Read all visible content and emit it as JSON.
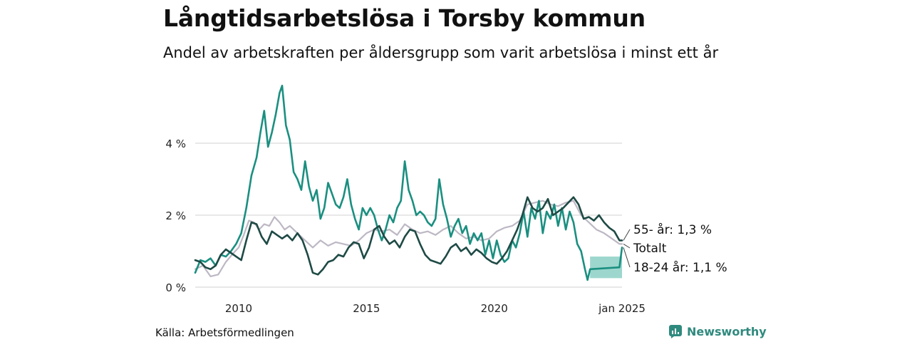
{
  "header": {
    "title": "Långtidsarbetslösa i Torsby kommun",
    "subtitle": "Andel av arbetskraften per åldersgrupp som varit arbetslösa i minst ett år"
  },
  "footer": {
    "source": "Källa: Arbetsförmedlingen",
    "brand": "Newsworthy"
  },
  "colors": {
    "young": "#1a8f80",
    "old": "#1e4a45",
    "total": "#bdb8c4",
    "band": "#7cc8bc",
    "grid": "#d9d9d9"
  },
  "chart_data": {
    "type": "line",
    "title": "Långtidsarbetslösa i Torsby kommun",
    "xlabel": "",
    "ylabel": "",
    "xlim": [
      2008.3,
      2025.0
    ],
    "ylim": [
      0,
      5.8
    ],
    "y_ticks": [
      0,
      2,
      4
    ],
    "y_tick_labels": [
      "0 %",
      "2 %",
      "4 %"
    ],
    "x_ticks": [
      2010,
      2015,
      2020,
      2025
    ],
    "x_tick_labels": [
      "2010",
      "2015",
      "2020",
      "jan 2025"
    ],
    "series": [
      {
        "name": "Totalt",
        "label": "Totalt",
        "color": "#bdb8c4",
        "points": [
          [
            2008.3,
            0.5
          ],
          [
            2008.6,
            0.6
          ],
          [
            2008.9,
            0.3
          ],
          [
            2009.2,
            0.35
          ],
          [
            2009.5,
            0.7
          ],
          [
            2009.8,
            0.95
          ],
          [
            2010.0,
            1.1
          ],
          [
            2010.2,
            1.45
          ],
          [
            2010.4,
            1.85
          ],
          [
            2010.6,
            1.8
          ],
          [
            2010.8,
            1.6
          ],
          [
            2011.0,
            1.75
          ],
          [
            2011.2,
            1.7
          ],
          [
            2011.4,
            1.95
          ],
          [
            2011.6,
            1.8
          ],
          [
            2011.8,
            1.6
          ],
          [
            2012.0,
            1.7
          ],
          [
            2012.3,
            1.5
          ],
          [
            2012.6,
            1.3
          ],
          [
            2012.9,
            1.1
          ],
          [
            2013.2,
            1.3
          ],
          [
            2013.5,
            1.15
          ],
          [
            2013.8,
            1.25
          ],
          [
            2014.1,
            1.2
          ],
          [
            2014.4,
            1.15
          ],
          [
            2014.7,
            1.3
          ],
          [
            2015.0,
            1.5
          ],
          [
            2015.3,
            1.6
          ],
          [
            2015.6,
            1.55
          ],
          [
            2015.9,
            1.6
          ],
          [
            2016.2,
            1.45
          ],
          [
            2016.5,
            1.75
          ],
          [
            2016.8,
            1.6
          ],
          [
            2017.1,
            1.5
          ],
          [
            2017.4,
            1.55
          ],
          [
            2017.7,
            1.45
          ],
          [
            2018.0,
            1.6
          ],
          [
            2018.3,
            1.7
          ],
          [
            2018.6,
            1.5
          ],
          [
            2018.9,
            1.35
          ],
          [
            2019.2,
            1.4
          ],
          [
            2019.5,
            1.3
          ],
          [
            2019.8,
            1.35
          ],
          [
            2020.1,
            1.55
          ],
          [
            2020.4,
            1.65
          ],
          [
            2020.7,
            1.7
          ],
          [
            2021.0,
            1.85
          ],
          [
            2021.3,
            2.3
          ],
          [
            2021.6,
            2.35
          ],
          [
            2021.9,
            2.4
          ],
          [
            2022.2,
            2.3
          ],
          [
            2022.5,
            2.25
          ],
          [
            2022.8,
            2.35
          ],
          [
            2023.1,
            2.4
          ],
          [
            2023.4,
            2.0
          ],
          [
            2023.7,
            1.8
          ],
          [
            2024.0,
            1.6
          ],
          [
            2024.3,
            1.5
          ],
          [
            2024.6,
            1.35
          ],
          [
            2024.9,
            1.2
          ],
          [
            2025.0,
            1.2
          ]
        ]
      },
      {
        "name": "18-24 år",
        "label": "18-24 år: 1,1 %",
        "color": "#1a8f80",
        "points": [
          [
            2008.3,
            0.4
          ],
          [
            2008.5,
            0.75
          ],
          [
            2008.7,
            0.7
          ],
          [
            2008.9,
            0.8
          ],
          [
            2009.1,
            0.6
          ],
          [
            2009.3,
            0.9
          ],
          [
            2009.5,
            0.85
          ],
          [
            2009.7,
            1.0
          ],
          [
            2009.9,
            1.2
          ],
          [
            2010.1,
            1.5
          ],
          [
            2010.3,
            2.2
          ],
          [
            2010.5,
            3.1
          ],
          [
            2010.7,
            3.6
          ],
          [
            2010.85,
            4.3
          ],
          [
            2011.0,
            4.9
          ],
          [
            2011.15,
            3.9
          ],
          [
            2011.3,
            4.3
          ],
          [
            2011.45,
            4.8
          ],
          [
            2011.6,
            5.4
          ],
          [
            2011.7,
            5.6
          ],
          [
            2011.85,
            4.5
          ],
          [
            2012.0,
            4.1
          ],
          [
            2012.15,
            3.2
          ],
          [
            2012.3,
            3.0
          ],
          [
            2012.45,
            2.7
          ],
          [
            2012.6,
            3.5
          ],
          [
            2012.75,
            2.8
          ],
          [
            2012.9,
            2.4
          ],
          [
            2013.05,
            2.7
          ],
          [
            2013.2,
            1.9
          ],
          [
            2013.35,
            2.2
          ],
          [
            2013.5,
            2.9
          ],
          [
            2013.65,
            2.6
          ],
          [
            2013.8,
            2.3
          ],
          [
            2013.95,
            2.2
          ],
          [
            2014.1,
            2.5
          ],
          [
            2014.25,
            3.0
          ],
          [
            2014.4,
            2.3
          ],
          [
            2014.55,
            1.9
          ],
          [
            2014.7,
            1.6
          ],
          [
            2014.85,
            2.2
          ],
          [
            2015.0,
            2.0
          ],
          [
            2015.15,
            2.2
          ],
          [
            2015.3,
            2.0
          ],
          [
            2015.45,
            1.6
          ],
          [
            2015.6,
            1.3
          ],
          [
            2015.75,
            1.6
          ],
          [
            2015.9,
            2.0
          ],
          [
            2016.05,
            1.8
          ],
          [
            2016.2,
            2.2
          ],
          [
            2016.35,
            2.4
          ],
          [
            2016.5,
            3.5
          ],
          [
            2016.65,
            2.7
          ],
          [
            2016.8,
            2.4
          ],
          [
            2016.95,
            2.0
          ],
          [
            2017.1,
            2.1
          ],
          [
            2017.25,
            2.0
          ],
          [
            2017.4,
            1.8
          ],
          [
            2017.55,
            1.7
          ],
          [
            2017.7,
            1.9
          ],
          [
            2017.85,
            3.0
          ],
          [
            2018.0,
            2.3
          ],
          [
            2018.15,
            1.9
          ],
          [
            2018.3,
            1.4
          ],
          [
            2018.45,
            1.7
          ],
          [
            2018.6,
            1.9
          ],
          [
            2018.75,
            1.5
          ],
          [
            2018.9,
            1.7
          ],
          [
            2019.05,
            1.2
          ],
          [
            2019.2,
            1.5
          ],
          [
            2019.35,
            1.3
          ],
          [
            2019.5,
            1.5
          ],
          [
            2019.65,
            0.9
          ],
          [
            2019.8,
            1.3
          ],
          [
            2019.95,
            0.8
          ],
          [
            2020.1,
            1.3
          ],
          [
            2020.25,
            0.9
          ],
          [
            2020.4,
            0.7
          ],
          [
            2020.55,
            0.8
          ],
          [
            2020.7,
            1.3
          ],
          [
            2020.85,
            1.1
          ],
          [
            2021.0,
            1.5
          ],
          [
            2021.15,
            2.1
          ],
          [
            2021.3,
            1.4
          ],
          [
            2021.45,
            2.2
          ],
          [
            2021.6,
            1.9
          ],
          [
            2021.75,
            2.4
          ],
          [
            2021.9,
            1.5
          ],
          [
            2022.05,
            2.1
          ],
          [
            2022.2,
            1.9
          ],
          [
            2022.35,
            2.3
          ],
          [
            2022.5,
            1.7
          ],
          [
            2022.65,
            2.2
          ],
          [
            2022.8,
            1.6
          ],
          [
            2022.95,
            2.1
          ],
          [
            2023.1,
            1.8
          ],
          [
            2023.25,
            1.2
          ],
          [
            2023.4,
            1.0
          ],
          [
            2023.55,
            0.5
          ],
          [
            2023.65,
            0.2
          ],
          [
            2023.75,
            0.5
          ],
          [
            2024.9,
            0.55
          ],
          [
            2025.0,
            1.1
          ]
        ]
      },
      {
        "name": "55- år",
        "label": "55- år: 1,3 %",
        "color": "#1e4a45",
        "points": [
          [
            2008.3,
            0.75
          ],
          [
            2008.5,
            0.7
          ],
          [
            2008.7,
            0.55
          ],
          [
            2008.9,
            0.5
          ],
          [
            2009.1,
            0.6
          ],
          [
            2009.3,
            0.9
          ],
          [
            2009.5,
            1.05
          ],
          [
            2009.7,
            0.95
          ],
          [
            2009.9,
            0.85
          ],
          [
            2010.1,
            0.75
          ],
          [
            2010.3,
            1.3
          ],
          [
            2010.5,
            1.8
          ],
          [
            2010.7,
            1.75
          ],
          [
            2010.9,
            1.4
          ],
          [
            2011.1,
            1.2
          ],
          [
            2011.3,
            1.55
          ],
          [
            2011.5,
            1.45
          ],
          [
            2011.7,
            1.35
          ],
          [
            2011.9,
            1.45
          ],
          [
            2012.1,
            1.3
          ],
          [
            2012.3,
            1.5
          ],
          [
            2012.5,
            1.3
          ],
          [
            2012.7,
            0.9
          ],
          [
            2012.9,
            0.4
          ],
          [
            2013.1,
            0.35
          ],
          [
            2013.3,
            0.5
          ],
          [
            2013.5,
            0.7
          ],
          [
            2013.7,
            0.75
          ],
          [
            2013.9,
            0.9
          ],
          [
            2014.1,
            0.85
          ],
          [
            2014.3,
            1.1
          ],
          [
            2014.5,
            1.25
          ],
          [
            2014.7,
            1.2
          ],
          [
            2014.9,
            0.8
          ],
          [
            2015.1,
            1.1
          ],
          [
            2015.3,
            1.6
          ],
          [
            2015.5,
            1.7
          ],
          [
            2015.7,
            1.4
          ],
          [
            2015.9,
            1.2
          ],
          [
            2016.1,
            1.3
          ],
          [
            2016.3,
            1.1
          ],
          [
            2016.5,
            1.4
          ],
          [
            2016.7,
            1.6
          ],
          [
            2016.9,
            1.55
          ],
          [
            2017.1,
            1.2
          ],
          [
            2017.3,
            0.9
          ],
          [
            2017.5,
            0.75
          ],
          [
            2017.7,
            0.7
          ],
          [
            2017.9,
            0.65
          ],
          [
            2018.1,
            0.85
          ],
          [
            2018.3,
            1.1
          ],
          [
            2018.5,
            1.2
          ],
          [
            2018.7,
            1.0
          ],
          [
            2018.9,
            1.1
          ],
          [
            2019.1,
            0.9
          ],
          [
            2019.3,
            1.05
          ],
          [
            2019.5,
            0.95
          ],
          [
            2019.7,
            0.8
          ],
          [
            2019.9,
            0.7
          ],
          [
            2020.1,
            0.65
          ],
          [
            2020.3,
            0.8
          ],
          [
            2020.5,
            1.0
          ],
          [
            2020.7,
            1.3
          ],
          [
            2020.9,
            1.6
          ],
          [
            2021.1,
            2.0
          ],
          [
            2021.3,
            2.5
          ],
          [
            2021.5,
            2.2
          ],
          [
            2021.7,
            2.1
          ],
          [
            2021.9,
            2.2
          ],
          [
            2022.1,
            2.45
          ],
          [
            2022.3,
            2.0
          ],
          [
            2022.5,
            2.1
          ],
          [
            2022.7,
            2.2
          ],
          [
            2022.9,
            2.35
          ],
          [
            2023.1,
            2.5
          ],
          [
            2023.3,
            2.3
          ],
          [
            2023.5,
            1.9
          ],
          [
            2023.7,
            1.95
          ],
          [
            2023.9,
            1.85
          ],
          [
            2024.1,
            2.0
          ],
          [
            2024.3,
            1.8
          ],
          [
            2024.5,
            1.65
          ],
          [
            2024.7,
            1.55
          ],
          [
            2024.9,
            1.3
          ],
          [
            2025.0,
            1.3
          ]
        ]
      }
    ],
    "uncertainty_band": {
      "series": "18-24 år",
      "x": [
        2023.75,
        2025.0
      ],
      "lower": 0.25,
      "upper": 0.85
    }
  }
}
